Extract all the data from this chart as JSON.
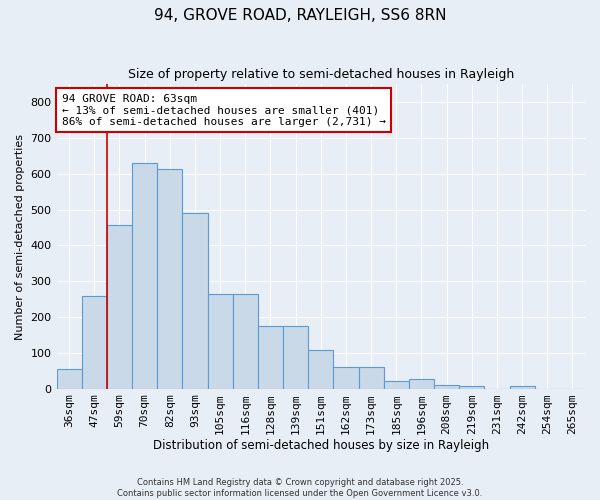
{
  "title": "94, GROVE ROAD, RAYLEIGH, SS6 8RN",
  "subtitle": "Size of property relative to semi-detached houses in Rayleigh",
  "xlabel": "Distribution of semi-detached houses by size in Rayleigh",
  "ylabel": "Number of semi-detached properties",
  "bar_labels": [
    "36sqm",
    "47sqm",
    "59sqm",
    "70sqm",
    "82sqm",
    "93sqm",
    "105sqm",
    "116sqm",
    "128sqm",
    "139sqm",
    "151sqm",
    "162sqm",
    "173sqm",
    "185sqm",
    "196sqm",
    "208sqm",
    "219sqm",
    "231sqm",
    "242sqm",
    "254sqm",
    "265sqm"
  ],
  "bar_values": [
    55,
    258,
    458,
    630,
    615,
    490,
    265,
    265,
    175,
    175,
    108,
    60,
    60,
    22,
    27,
    10,
    7,
    0,
    7,
    0,
    0
  ],
  "bar_color": "#c9d9e8",
  "bar_edge_color": "#5b9bd5",
  "annotation_text": "94 GROVE ROAD: 63sqm\n← 13% of semi-detached houses are smaller (401)\n86% of semi-detached houses are larger (2,731) →",
  "annotation_box_color": "#ffffff",
  "annotation_box_edge_color": "#cc0000",
  "vline_x_index": 2,
  "vline_color": "#cc0000",
  "ylim": [
    0,
    850
  ],
  "yticks": [
    0,
    100,
    200,
    300,
    400,
    500,
    600,
    700,
    800
  ],
  "background_color": "#e8eef5",
  "grid_color": "#ffffff",
  "footer_line1": "Contains HM Land Registry data © Crown copyright and database right 2025.",
  "footer_line2": "Contains public sector information licensed under the Open Government Licence v3.0."
}
